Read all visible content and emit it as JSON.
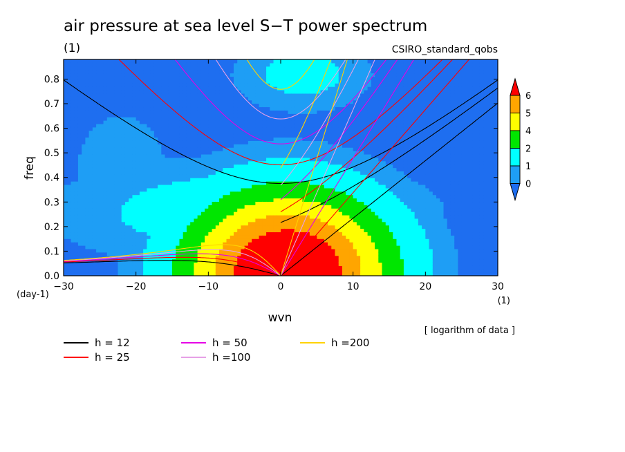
{
  "title": "air pressure at sea level S−T power spectrum",
  "subtitle": "(1)",
  "source": "CSIRO_standard_qobs",
  "note": "[ logarithm of data ]",
  "colors": {
    "level_0": "#1e6ef0",
    "level_1": "#1e9ef5",
    "level_2": "#00ffff",
    "level_3": "#00e600",
    "level_4": "#ffff00",
    "level_5": "#ffa500",
    "level_6": "#ff0000",
    "background": "#ffffff"
  },
  "chart_data": {
    "type": "heatmap",
    "title": "air pressure at sea level S−T power spectrum",
    "xlabel": "wvn",
    "ylabel": "freq",
    "x_unit": "(1)",
    "y_unit": "(day-1)",
    "xlim": [
      -30,
      30
    ],
    "ylim": [
      0,
      0.88
    ],
    "x_ticks": [
      "−30",
      "−20",
      "−10",
      "0",
      "10",
      "20",
      "30"
    ],
    "x_tick_values": [
      -30,
      -20,
      -10,
      0,
      10,
      20,
      30
    ],
    "y_ticks": [
      "0.0",
      "0.1",
      "0.2",
      "0.3",
      "0.4",
      "0.5",
      "0.6",
      "0.7",
      "0.8"
    ],
    "y_tick_values": [
      0,
      0.1,
      0.2,
      0.3,
      0.4,
      0.5,
      0.6,
      0.7,
      0.8
    ],
    "colorbar": {
      "labels": [
        "0",
        "1",
        "2",
        "4",
        "5",
        "6"
      ],
      "colors": [
        "#1e6ef0",
        "#1e9ef5",
        "#00ffff",
        "#00e600",
        "#ffff00",
        "#ffa500",
        "#ff0000"
      ]
    },
    "dispersion_curves": [
      {
        "name": "h = 12",
        "h": 12,
        "color": "#000000"
      },
      {
        "name": "h = 25",
        "h": 25,
        "color": "#ff0000"
      },
      {
        "name": "h = 50",
        "h": 50,
        "color": "#e600e6"
      },
      {
        "name": "h =100",
        "h": 100,
        "color": "#e6a0e6"
      },
      {
        "name": "h =200",
        "h": 200,
        "color": "#ffd200"
      }
    ]
  }
}
